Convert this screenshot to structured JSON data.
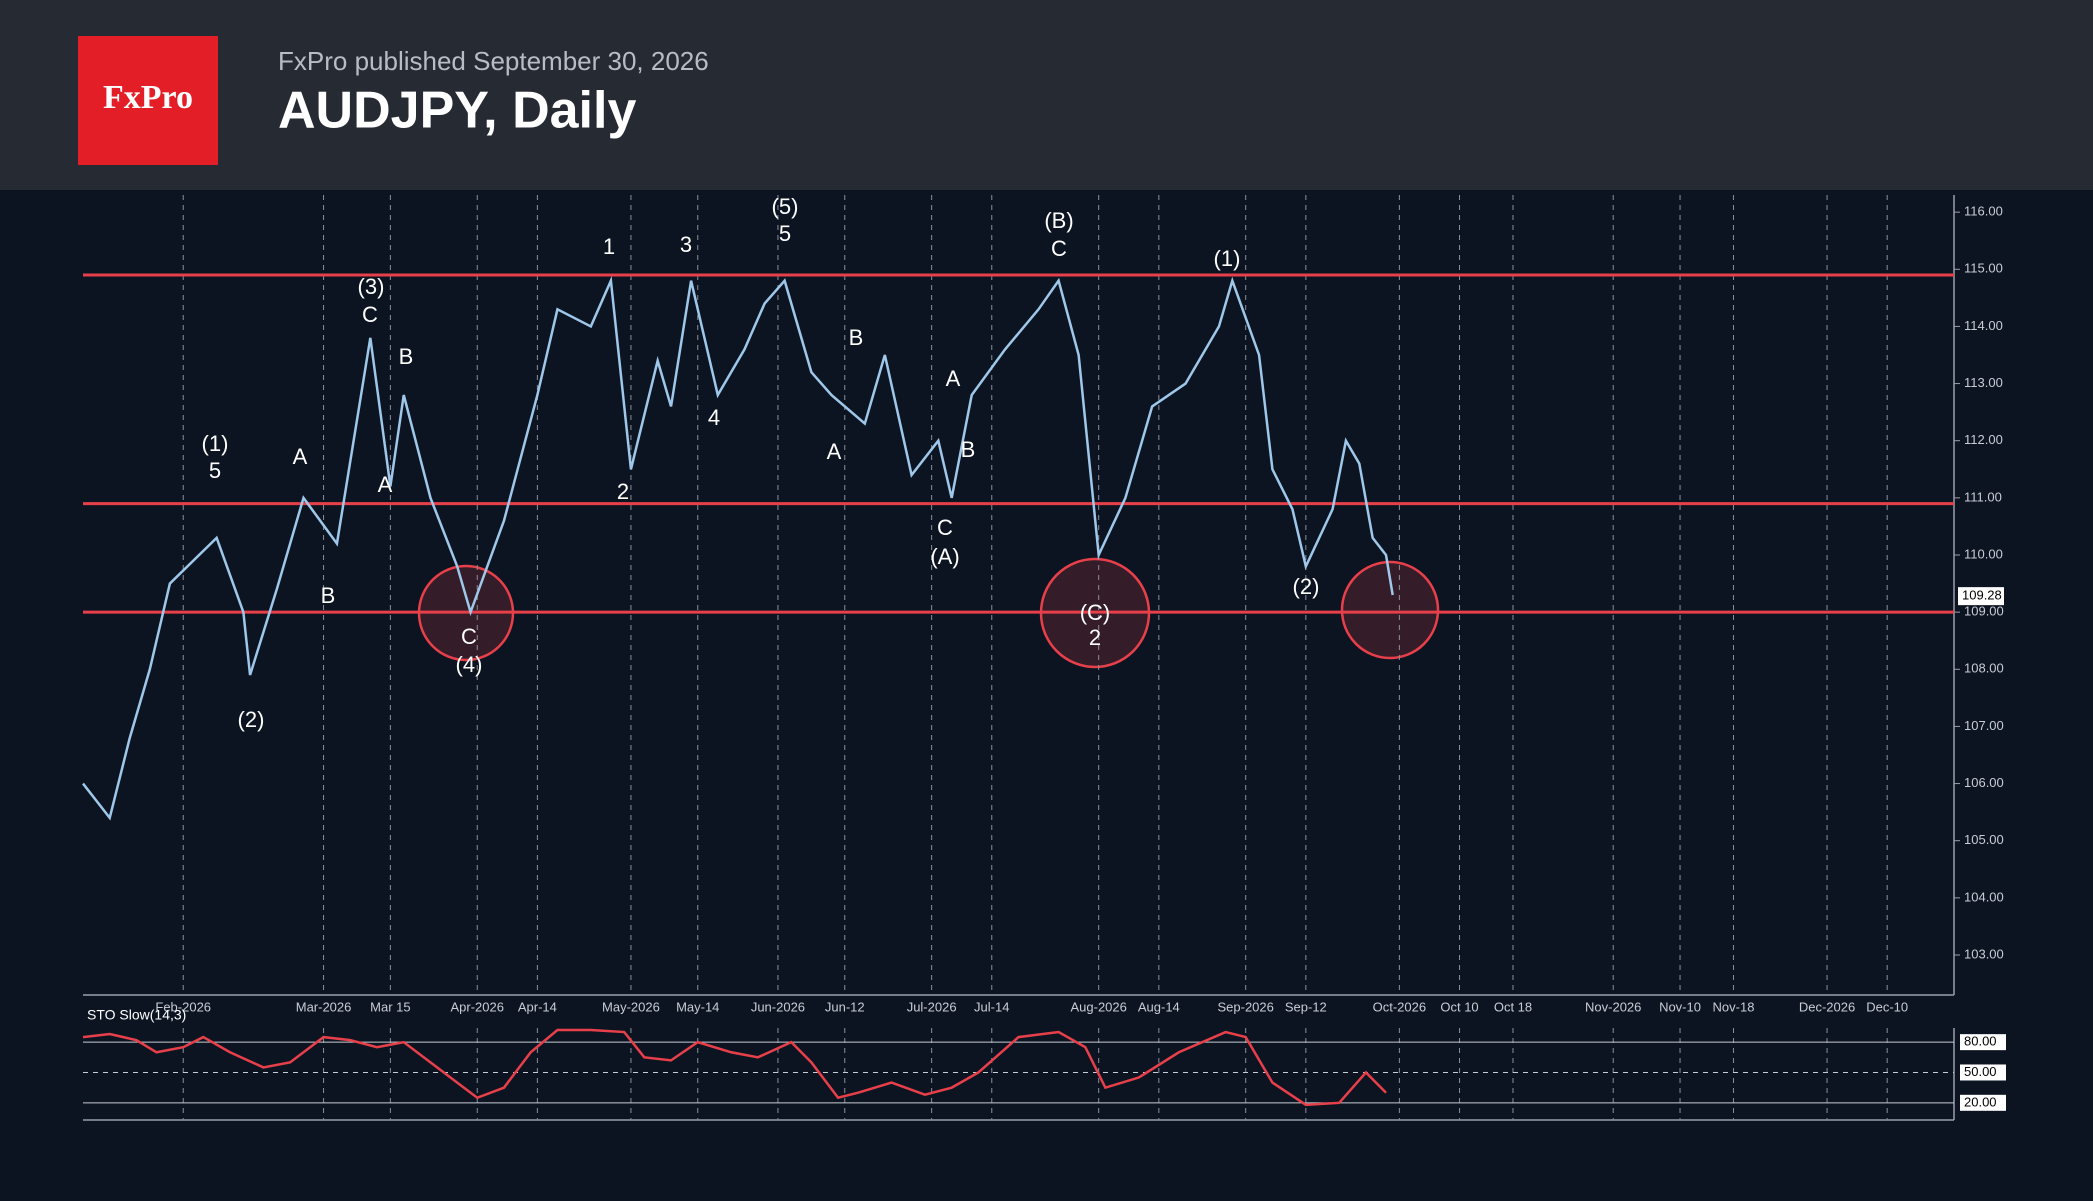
{
  "header": {
    "logo": "FxPro",
    "publisher": "FxPro published September 30, 2026",
    "title": "AUDJPY, Daily"
  },
  "chart_data": [
    {
      "type": "line",
      "name": "AUDJPY",
      "color": "#9ec7ea",
      "last_price": {
        "value": 109.28,
        "label": "109.28"
      },
      "x": [
        0,
        4,
        7,
        10,
        13,
        20,
        24,
        25,
        29,
        33,
        38,
        43,
        46,
        48,
        52,
        56,
        58,
        63,
        68,
        71,
        76,
        79,
        82,
        86,
        88,
        91,
        95,
        99,
        102,
        105,
        109,
        112,
        117,
        120,
        124,
        128,
        130,
        133,
        138,
        143,
        146,
        149,
        152,
        156,
        160,
        165,
        170,
        172,
        176,
        178,
        181,
        183,
        187,
        189,
        191,
        193,
        195,
        196
      ],
      "values": [
        106.0,
        105.4,
        106.8,
        108.0,
        109.5,
        110.3,
        109.0,
        107.9,
        109.4,
        111.0,
        110.2,
        113.8,
        111.2,
        112.8,
        111.0,
        109.8,
        109.0,
        110.6,
        112.8,
        114.3,
        114.0,
        114.8,
        111.5,
        113.4,
        112.6,
        114.8,
        112.8,
        113.6,
        114.4,
        114.8,
        113.2,
        112.8,
        112.3,
        113.5,
        111.4,
        112.0,
        111.0,
        112.8,
        113.6,
        114.3,
        114.8,
        113.5,
        110.0,
        111.0,
        112.6,
        113.0,
        114.0,
        114.8,
        113.5,
        111.5,
        110.8,
        109.8,
        110.8,
        112.0,
        111.6,
        110.3,
        110.0,
        109.3
      ],
      "levels": [
        114.9,
        110.9,
        109.0
      ],
      "level_color": "#e8404a",
      "xlim": [
        0,
        280
      ],
      "ylim": [
        102.3,
        116.3
      ],
      "xticks": [
        {
          "value": 15,
          "label": "Feb-2026"
        },
        {
          "value": 36,
          "label": "Mar-2026"
        },
        {
          "value": 46,
          "label": "Mar 15"
        },
        {
          "value": 59,
          "label": "Apr-2026"
        },
        {
          "value": 68,
          "label": "Apr-14"
        },
        {
          "value": 82,
          "label": "May-2026"
        },
        {
          "value": 92,
          "label": "May-14"
        },
        {
          "value": 104,
          "label": "Jun-2026"
        },
        {
          "value": 114,
          "label": "Jun-12"
        },
        {
          "value": 127,
          "label": "Jul-2026"
        },
        {
          "value": 136,
          "label": "Jul-14"
        },
        {
          "value": 152,
          "label": "Aug-2026"
        },
        {
          "value": 161,
          "label": "Aug-14"
        },
        {
          "value": 174,
          "label": "Sep-2026"
        },
        {
          "value": 183,
          "label": "Sep-12"
        },
        {
          "value": 197,
          "label": "Oct-2026"
        },
        {
          "value": 206,
          "label": "Oct 10"
        },
        {
          "value": 214,
          "label": "Oct 18"
        },
        {
          "value": 229,
          "label": "Nov-2026"
        },
        {
          "value": 239,
          "label": "Nov-10"
        },
        {
          "value": 247,
          "label": "Nov-18"
        },
        {
          "value": 261,
          "label": "Dec-2026"
        },
        {
          "value": 270,
          "label": "Dec-10"
        }
      ],
      "yticks": [
        {
          "value": 103,
          "label": "103.00"
        },
        {
          "value": 104,
          "label": "104.00"
        },
        {
          "value": 105,
          "label": "105.00"
        },
        {
          "value": 106,
          "label": "106.00"
        },
        {
          "value": 107,
          "label": "107.00"
        },
        {
          "value": 108,
          "label": "108.00"
        },
        {
          "value": 109,
          "label": "109.00"
        },
        {
          "value": 110,
          "label": "110.00"
        },
        {
          "value": 111,
          "label": "111.00"
        },
        {
          "value": 112,
          "label": "112.00"
        },
        {
          "value": 113,
          "label": "113.00"
        },
        {
          "value": 114,
          "label": "114.00"
        },
        {
          "value": 115,
          "label": "115.00"
        },
        {
          "value": 116,
          "label": "116.00"
        }
      ],
      "annotations": [
        "(1)",
        "5",
        "(2)",
        "A",
        "B",
        "(3)",
        "C",
        "A",
        "B",
        "C",
        "(4)",
        "1",
        "2",
        "3",
        "4",
        "(5)",
        "5",
        "A",
        "B",
        "A",
        "B",
        "C",
        "(A)",
        "(B)",
        "C",
        "(C)",
        "2",
        "(1)",
        "(2)"
      ]
    },
    {
      "type": "line",
      "name": "STO Slow(14,3)",
      "color": "#e8404a",
      "x": [
        0,
        4,
        8,
        11,
        15,
        18,
        22,
        27,
        31,
        36,
        40,
        44,
        48,
        52,
        56,
        59,
        63,
        67,
        71,
        76,
        81,
        84,
        88,
        92,
        97,
        101,
        106,
        109,
        113,
        116,
        121,
        126,
        130,
        134,
        140,
        146,
        150,
        153,
        158,
        164,
        171,
        174,
        178,
        183,
        188,
        192,
        195
      ],
      "values": [
        85,
        88,
        82,
        70,
        75,
        85,
        70,
        55,
        60,
        85,
        82,
        75,
        80,
        60,
        40,
        25,
        35,
        70,
        92,
        92,
        90,
        65,
        62,
        80,
        70,
        65,
        80,
        60,
        25,
        30,
        40,
        28,
        35,
        50,
        85,
        90,
        75,
        35,
        45,
        70,
        90,
        85,
        40,
        18,
        20,
        50,
        30
      ],
      "xlim": [
        0,
        280
      ],
      "ylim": [
        3,
        94
      ],
      "yticks": [
        {
          "value": 80,
          "label": "80.00"
        },
        {
          "value": 50,
          "label": "50.00"
        },
        {
          "value": 20,
          "label": "20.00"
        }
      ]
    }
  ]
}
